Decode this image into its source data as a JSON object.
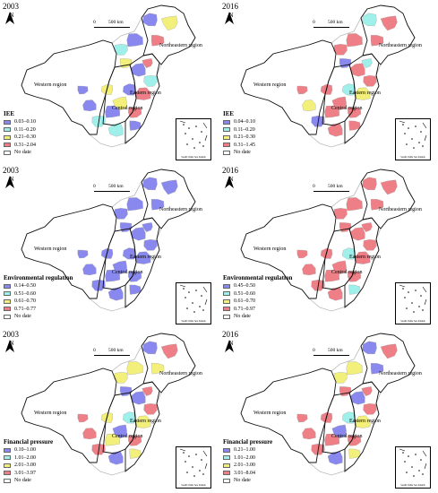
{
  "colors": {
    "c1": "#8888ee",
    "c2": "#9ff0ea",
    "c3": "#f2ef7a",
    "c4": "#ee7f86",
    "nodata": "#ffffff"
  },
  "scale": {
    "zero": "0",
    "km": "500 km"
  },
  "north_label": "N",
  "inset_caption": "South China Sea Islands",
  "region_names": {
    "western": "Western region",
    "central": "Central region",
    "eastern": "Eastern region",
    "northeastern": "Northeastern region"
  },
  "panels": [
    {
      "year": "2003",
      "legend_title": "IEE",
      "legend": [
        "0.03–0.10",
        "0.11–0.20",
        "0.21–0.30",
        "0.31–2.04",
        "No date"
      ],
      "regions": [
        "c2",
        "c1",
        "c1",
        "c3",
        "c4",
        "c3",
        "c1",
        "c2",
        "c4",
        "c1",
        "c3",
        "c4",
        "c1",
        "c2",
        "c2",
        "c1",
        "c4",
        "c3",
        "c1",
        "c1"
      ]
    },
    {
      "year": "2016",
      "legend_title": "IEE",
      "legend": [
        "0.04–0.10",
        "0.11–0.20",
        "0.21–0.30",
        "0.31–1.45",
        "No date"
      ],
      "regions": [
        "c4",
        "c4",
        "c2",
        "c4",
        "c4",
        "c1",
        "c4",
        "c4",
        "c3",
        "c2",
        "c4",
        "c4",
        "c4",
        "c1",
        "c4",
        "c4",
        "c2",
        "c4",
        "c3",
        "c4"
      ]
    },
    {
      "year": "2003",
      "legend_title": "Environmental regulation",
      "legend": [
        "0.14–0.50",
        "0.51–0.60",
        "0.61–0.70",
        "0.71–0.77",
        "No date"
      ],
      "regions": [
        "c1",
        "c1",
        "c1",
        "c1",
        "c1",
        "c1",
        "c1",
        "c1",
        "c1",
        "c1",
        "c1",
        "c1",
        "c1",
        "c1",
        "c1",
        "c1",
        "c1",
        "c1",
        "c1",
        "c1"
      ]
    },
    {
      "year": "2016",
      "legend_title": "Environmental regulation",
      "legend": [
        "0.45–0.50",
        "0.51–0.60",
        "0.61–0.70",
        "0.71–0.97",
        "No date"
      ],
      "regions": [
        "c4",
        "c4",
        "c4",
        "c4",
        "c4",
        "c4",
        "c4",
        "c4",
        "c4",
        "c2",
        "c4",
        "c4",
        "c4",
        "c4",
        "c4",
        "c2",
        "c4",
        "c4",
        "c4",
        "c4"
      ]
    },
    {
      "year": "2003",
      "legend_title": "Financial pressure",
      "legend": [
        "0.10–1.00",
        "1.01–2.00",
        "2.01–3.00",
        "3.01–3.97",
        "No date"
      ],
      "regions": [
        "c3",
        "c3",
        "c1",
        "c4",
        "c3",
        "c1",
        "c1",
        "c4",
        "c3",
        "c2",
        "c1",
        "c4",
        "c3",
        "c4",
        "c1",
        "c3",
        "c4",
        "c3",
        "c4",
        "c4"
      ]
    },
    {
      "year": "2016",
      "legend_title": "Financial pressure",
      "legend": [
        "0.21–1.00",
        "1.01–2.00",
        "2.01–3.00",
        "3.01–8.04",
        "No date"
      ],
      "regions": [
        "c3",
        "c3",
        "c1",
        "c4",
        "c1",
        "c4",
        "c1",
        "c4",
        "c3",
        "c2",
        "c1",
        "c4",
        "c4",
        "c4",
        "c1",
        "c3",
        "c4",
        "c4",
        "c4",
        "c4"
      ]
    }
  ]
}
